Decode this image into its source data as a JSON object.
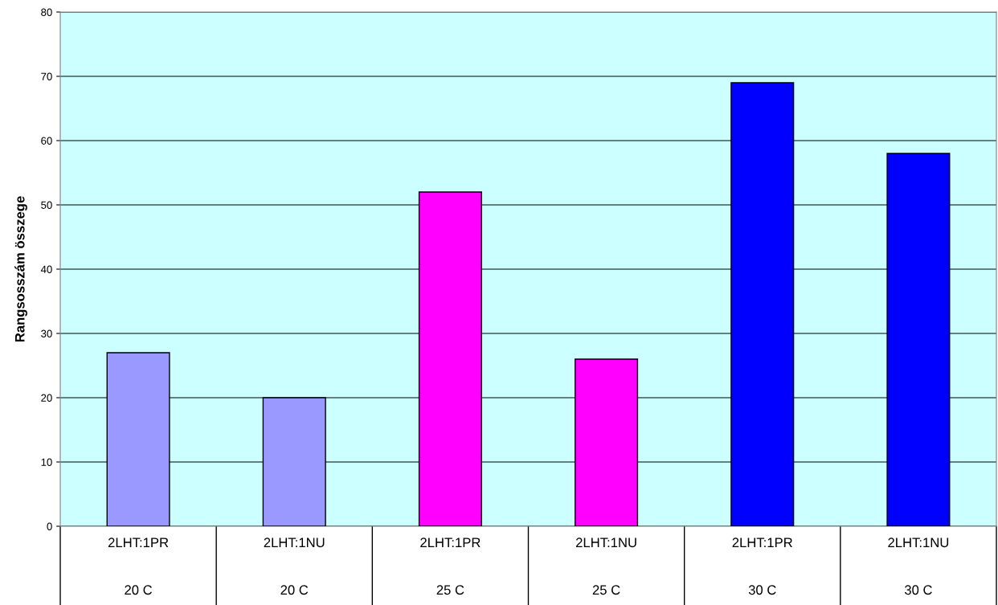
{
  "chart_data": {
    "type": "bar",
    "ylabel": "Rangsosszám összege",
    "categories": [
      "2LHT:1PR\n20 C",
      "2LHT:1NU\n20 C",
      "2LHT:1PR\n25 C",
      "2LHT:1NU\n25 C",
      "2LHT:1PR\n30 C",
      "2LHT:1NU\n30 C"
    ],
    "values": [
      27,
      20,
      52,
      26,
      69,
      58
    ],
    "colors": [
      "#9999ff",
      "#9999ff",
      "#ff00ff",
      "#ff00ff",
      "#0000ff",
      "#0000ff"
    ],
    "ylim": [
      0,
      80
    ],
    "yticks": [
      0,
      10,
      20,
      30,
      40,
      50,
      60,
      70,
      80
    ],
    "grid": "y",
    "legend": false
  }
}
